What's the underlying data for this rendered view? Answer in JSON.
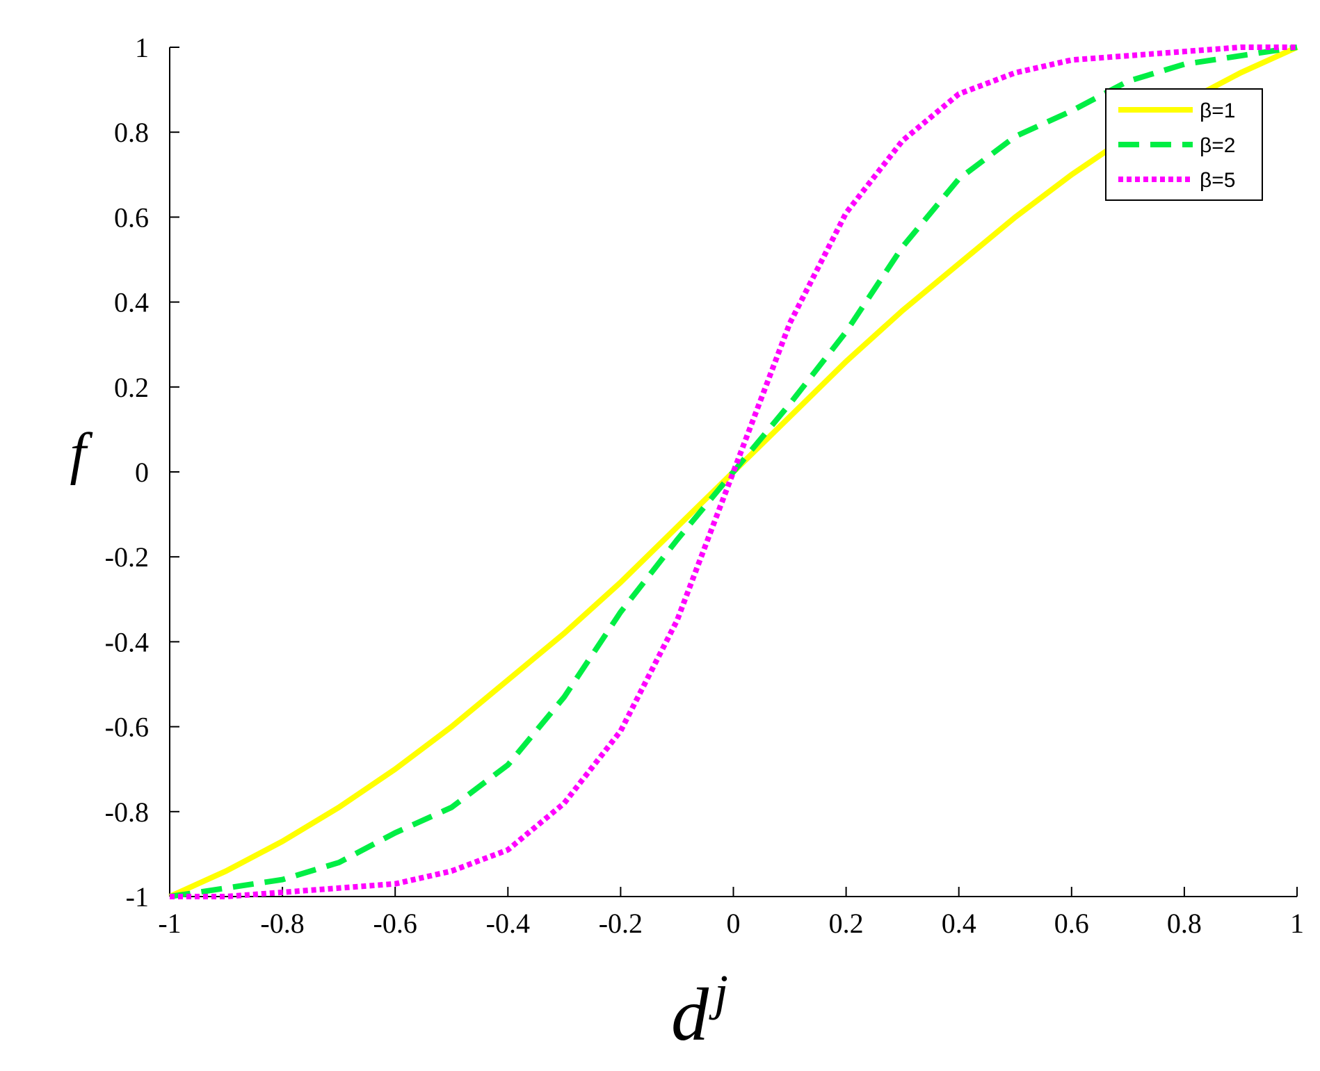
{
  "chart_data": {
    "type": "line",
    "title": "",
    "xlabel_base": "d",
    "xlabel_sup": "j",
    "ylabel": "f",
    "xlim": [
      -1,
      1
    ],
    "ylim": [
      -1,
      1
    ],
    "xticks": [
      -1,
      -0.8,
      -0.6,
      -0.4,
      -0.2,
      0,
      0.2,
      0.4,
      0.6,
      0.8,
      1
    ],
    "xtick_labels": [
      "-1",
      "-0.8",
      "-0.6",
      "-0.4",
      "-0.2",
      "0",
      "0.2",
      "0.4",
      "0.6",
      "0.8",
      "1"
    ],
    "yticks": [
      1,
      0.8,
      0.6,
      0.4,
      0.2,
      0,
      -0.2,
      -0.4,
      -0.6,
      -0.8,
      -1
    ],
    "ytick_labels": [
      "1",
      "0.8",
      "0.6",
      "0.4",
      "0.2",
      "0",
      "-0.2",
      "-0.4",
      "-0.6",
      "-0.8",
      "-1"
    ],
    "grid": false,
    "legend_position": "top-right",
    "x": [
      -1,
      -0.9,
      -0.8,
      -0.7,
      -0.6,
      -0.5,
      -0.4,
      -0.3,
      -0.2,
      -0.1,
      0,
      0.1,
      0.2,
      0.3,
      0.4,
      0.5,
      0.6,
      0.7,
      0.8,
      0.9,
      1
    ],
    "series": [
      {
        "name": "β=1",
        "color": "#ffff00",
        "style": "solid",
        "values": [
          -1,
          -0.94,
          -0.87,
          -0.79,
          -0.7,
          -0.6,
          -0.49,
          -0.38,
          -0.26,
          -0.13,
          0,
          0.13,
          0.26,
          0.38,
          0.49,
          0.6,
          0.7,
          0.79,
          0.87,
          0.94,
          1
        ]
      },
      {
        "name": "β=2",
        "color": "#00ee44",
        "style": "dashed",
        "values": [
          -1,
          -0.98,
          -0.96,
          -0.92,
          -0.85,
          -0.79,
          -0.69,
          -0.53,
          -0.33,
          -0.16,
          0,
          0.16,
          0.33,
          0.53,
          0.69,
          0.79,
          0.85,
          0.92,
          0.96,
          0.98,
          1
        ]
      },
      {
        "name": "β=5",
        "color": "#ff00ff",
        "style": "dotted",
        "values": [
          -1,
          -1,
          -0.99,
          -0.98,
          -0.97,
          -0.94,
          -0.89,
          -0.78,
          -0.61,
          -0.35,
          0,
          0.35,
          0.61,
          0.78,
          0.89,
          0.94,
          0.97,
          0.98,
          0.99,
          1,
          1
        ]
      }
    ]
  }
}
